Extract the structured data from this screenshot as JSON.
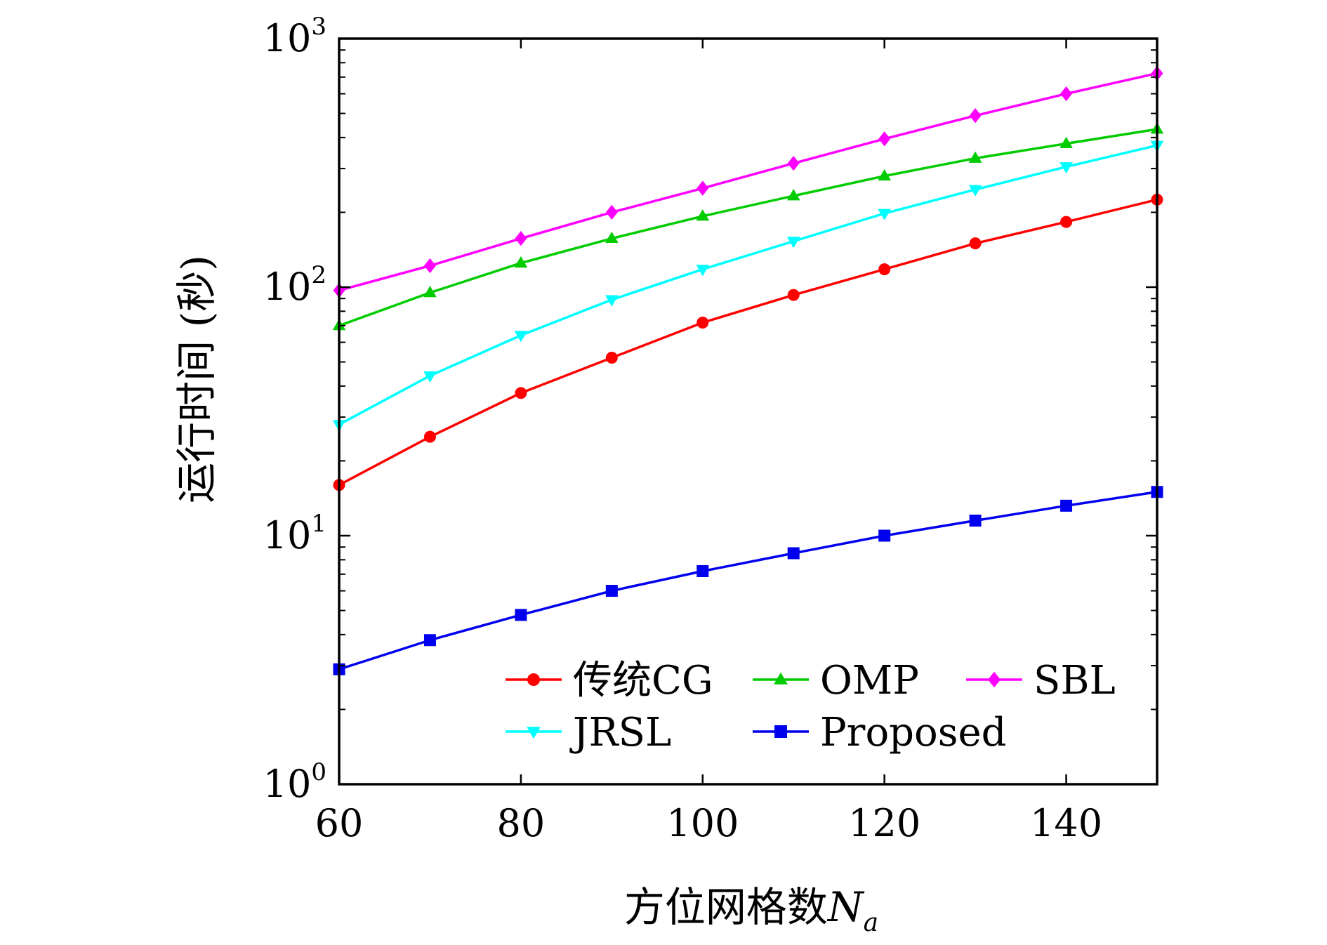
{
  "chart_data": {
    "type": "line",
    "title": "",
    "xlabel": "方位网格数",
    "xlabel_symbol": "N",
    "xlabel_subscript": "a",
    "ylabel": "运行时间 (秒)",
    "x": [
      60,
      70,
      80,
      90,
      100,
      110,
      120,
      130,
      140,
      150
    ],
    "xlim": [
      60,
      150
    ],
    "xticks": [
      60,
      80,
      100,
      120,
      140
    ],
    "xtick_labels": [
      "60",
      "80",
      "100",
      "120",
      "140"
    ],
    "yscale": "log",
    "ylim": [
      1,
      1000
    ],
    "yticks": [
      1,
      10,
      100,
      1000
    ],
    "ytick_labels": [
      {
        "base": "10",
        "exp": "0"
      },
      {
        "base": "10",
        "exp": "1"
      },
      {
        "base": "10",
        "exp": "2"
      },
      {
        "base": "10",
        "exp": "3"
      }
    ],
    "grid": false,
    "legend_position": "lower-right",
    "series": [
      {
        "name": "传统CG",
        "color": "#ff0000",
        "marker": "circle",
        "values": [
          16,
          25,
          37.5,
          52,
          72,
          93,
          118,
          150,
          183,
          225
        ]
      },
      {
        "name": "OMP",
        "color": "#00cc00",
        "marker": "triangle-up",
        "values": [
          70,
          95,
          125,
          157,
          193,
          233,
          280,
          330,
          378,
          432
        ]
      },
      {
        "name": "SBL",
        "color": "#ff00ff",
        "marker": "diamond",
        "values": [
          97,
          122,
          157,
          200,
          250,
          315,
          395,
          490,
          600,
          725
        ]
      },
      {
        "name": "JRSL",
        "color": "#00ffff",
        "marker": "triangle-down",
        "values": [
          28,
          44,
          64,
          89,
          118,
          153,
          198,
          247,
          305,
          372
        ]
      },
      {
        "name": "Proposed",
        "color": "#0000ee",
        "marker": "square",
        "values": [
          2.9,
          3.8,
          4.8,
          6.0,
          7.2,
          8.5,
          10.0,
          11.5,
          13.2,
          15.0
        ]
      }
    ]
  }
}
